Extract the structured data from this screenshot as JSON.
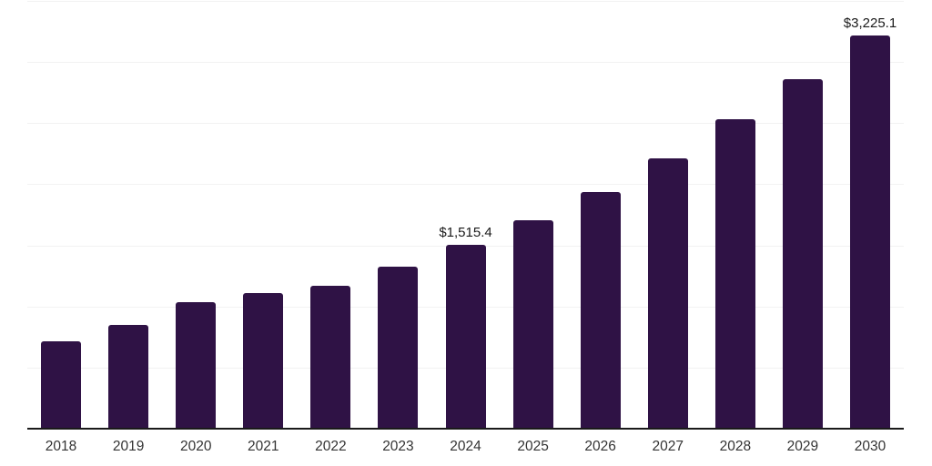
{
  "chart_data": {
    "type": "bar",
    "categories": [
      "2018",
      "2019",
      "2020",
      "2021",
      "2022",
      "2023",
      "2024",
      "2025",
      "2026",
      "2027",
      "2028",
      "2029",
      "2030"
    ],
    "values": [
      725,
      855,
      1040,
      1120,
      1180,
      1335,
      1515.4,
      1715,
      1945,
      2220,
      2540,
      2865,
      3225.1
    ],
    "data_labels": [
      null,
      null,
      null,
      null,
      null,
      null,
      "$1,515.4",
      null,
      null,
      null,
      null,
      null,
      "$3,225.1"
    ],
    "title": "",
    "xlabel": "",
    "ylabel": "",
    "ylim": [
      0,
      3500
    ],
    "gridline_step": 500,
    "grid_on": true,
    "legend": "none",
    "colors": {
      "bar": "#2F1245",
      "grid": "#f2f2f2",
      "axis": "#1a1a1a",
      "data_label": "#1a1a1a",
      "tick_label": "#333333",
      "background": "#ffffff"
    }
  }
}
